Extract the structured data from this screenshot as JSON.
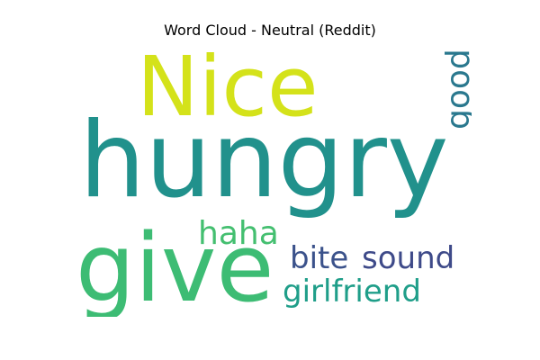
{
  "title": "Word Cloud - Neutral (Reddit)",
  "words": {
    "nice": {
      "text": "Nice",
      "color": "#d4e21a"
    },
    "hungry": {
      "text": "hungry",
      "color": "#21918c"
    },
    "give": {
      "text": "give",
      "color": "#3dbc74"
    },
    "haha": {
      "text": "haha",
      "color": "#44bf70"
    },
    "bite": {
      "text": "bite",
      "color": "#3b528b"
    },
    "sound": {
      "text": "sound",
      "color": "#3e4a89"
    },
    "girlfriend": {
      "text": "girlfriend",
      "color": "#1f9e89"
    },
    "good": {
      "text": "good",
      "color": "#2a788e"
    }
  }
}
